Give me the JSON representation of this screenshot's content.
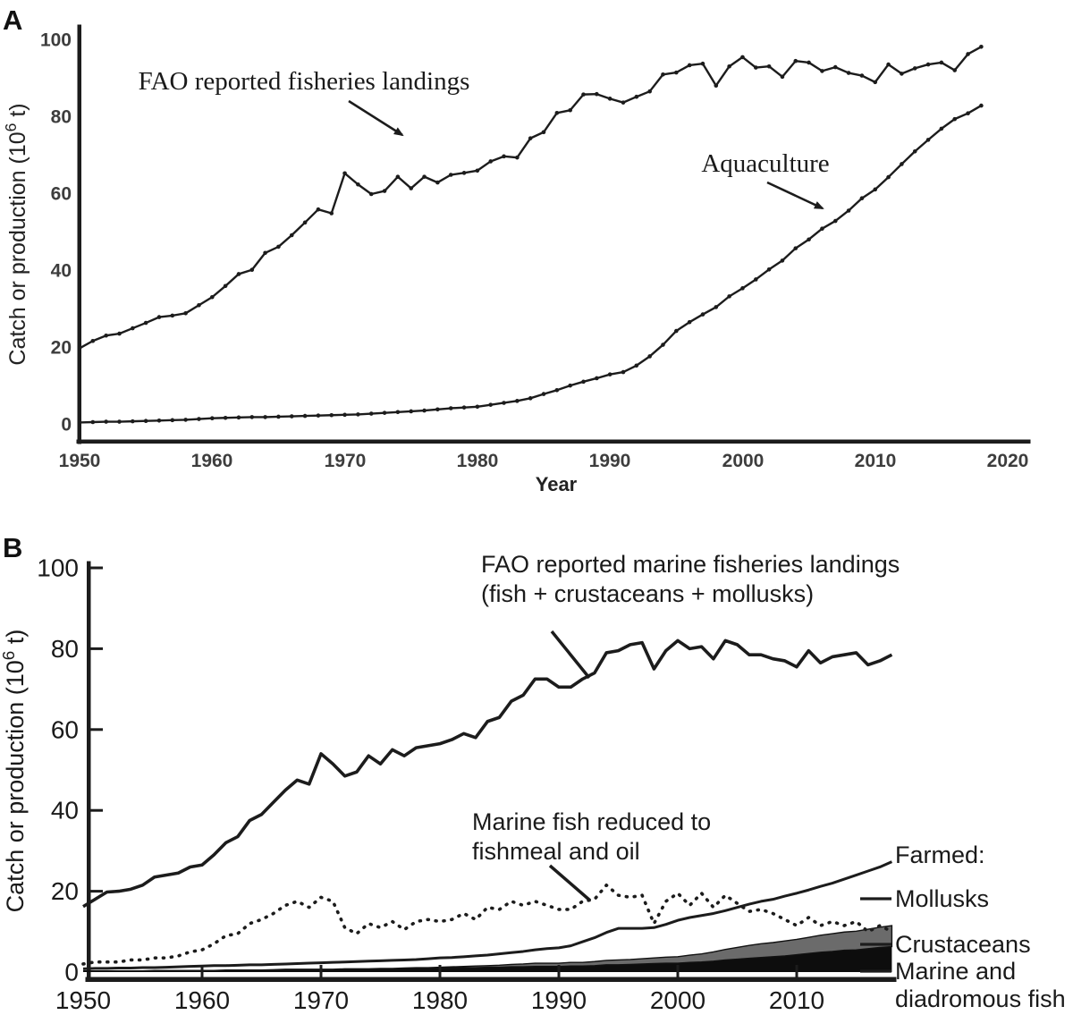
{
  "figure": {
    "panel_a_letter": "A",
    "panel_b_letter": "B",
    "line_color": "#1c1c1c",
    "crustacean_gray": "#6b6b6b",
    "fish_black": "#0d0d0d"
  },
  "panel_a": {
    "ylabel_prefix": "Catch or production (10",
    "ylabel_sup": "6",
    "ylabel_suffix": " t)",
    "xlabel": "Year",
    "annotation_landings": "FAO reported fisheries landings",
    "annotation_aquaculture": "Aquaculture",
    "y_ticks": [
      "0",
      "20",
      "40",
      "60",
      "80",
      "100"
    ],
    "x_ticks": [
      "1950",
      "1960",
      "1970",
      "1980",
      "1990",
      "2000",
      "2010",
      "2020"
    ]
  },
  "panel_b": {
    "ylabel_prefix": "Catch or production (10",
    "ylabel_sup": "6",
    "ylabel_suffix": " t)",
    "annotation_landings_line1": "FAO reported marine fisheries landings",
    "annotation_landings_line2": "(fish + crustaceans + mollusks)",
    "annotation_fishmeal_line1": "Marine fish reduced to",
    "annotation_fishmeal_line2": "fishmeal and oil",
    "legend_header": "Farmed:",
    "legend_mollusks": "Mollusks",
    "legend_crustaceans": "Crustaceans",
    "legend_marine_line1": "Marine and",
    "legend_marine_line2": "diadromous fish",
    "y_ticks": [
      "0",
      "20",
      "40",
      "60",
      "80",
      "100"
    ],
    "x_ticks": [
      "1950",
      "1960",
      "1970",
      "1980",
      "1990",
      "2000",
      "2010"
    ]
  },
  "chart_data": [
    {
      "panel": "A",
      "type": "line",
      "xlabel": "Year",
      "ylabel": "Catch or production (10^6 t)",
      "x_start_year": 1950,
      "xlim": [
        1950,
        2020
      ],
      "ylim": [
        0,
        100
      ],
      "grid": false,
      "series": [
        {
          "name": "FAO reported fisheries landings",
          "style": "solid-with-points",
          "values": [
            19.9,
            21.8,
            23.2,
            23.7,
            25.1,
            26.5,
            28.0,
            28.4,
            29.0,
            31.1,
            33.2,
            36.1,
            39.2,
            40.3,
            44.7,
            46.3,
            49.3,
            52.6,
            56.0,
            55.0,
            65.4,
            62.5,
            60.0,
            60.8,
            64.5,
            61.5,
            64.5,
            63.0,
            65.0,
            65.5,
            66.1,
            68.5,
            69.8,
            69.5,
            74.5,
            76.1,
            81.1,
            81.8,
            85.9,
            86.0,
            84.8,
            83.8,
            85.3,
            86.7,
            91.1,
            91.6,
            93.5,
            93.9,
            88.2,
            93.2,
            95.6,
            92.9,
            93.2,
            90.5,
            94.6,
            94.2,
            92.0,
            93.0,
            91.5,
            90.8,
            89.1,
            93.7,
            91.3,
            92.7,
            93.7,
            94.2,
            92.2,
            96.4,
            98.3
          ]
        },
        {
          "name": "Aquaculture",
          "style": "solid-with-points",
          "values": [
            0.6,
            0.7,
            0.8,
            0.8,
            0.9,
            1.0,
            1.1,
            1.2,
            1.3,
            1.5,
            1.7,
            1.8,
            1.9,
            2.0,
            2.0,
            2.1,
            2.2,
            2.3,
            2.4,
            2.5,
            2.6,
            2.7,
            2.9,
            3.1,
            3.3,
            3.5,
            3.7,
            4.0,
            4.3,
            4.5,
            4.7,
            5.2,
            5.7,
            6.2,
            6.9,
            8.0,
            9.0,
            10.2,
            11.2,
            12.1,
            13.1,
            13.7,
            15.4,
            17.8,
            20.8,
            24.4,
            26.7,
            28.7,
            30.6,
            33.4,
            35.5,
            37.8,
            40.4,
            42.7,
            45.9,
            48.2,
            51.0,
            53.0,
            55.7,
            58.9,
            61.2,
            64.4,
            67.8,
            71.1,
            74.1,
            77.0,
            79.5,
            81.0,
            83.0
          ]
        }
      ]
    },
    {
      "panel": "B",
      "type": "line+stacked-area",
      "xlabel": "",
      "ylabel": "Catch or production (10^6 t)",
      "x_start_year": 1950,
      "xlim": [
        1950,
        2018
      ],
      "ylim": [
        0,
        100
      ],
      "grid": false,
      "series": [
        {
          "name": "FAO reported marine fisheries landings (fish + crustaceans + mollusks)",
          "style": "solid",
          "values": [
            16.2,
            18.0,
            19.8,
            20.0,
            20.5,
            21.5,
            23.5,
            24.0,
            24.5,
            26.0,
            26.5,
            29.0,
            32.0,
            33.5,
            37.5,
            39.0,
            42.0,
            45.0,
            47.5,
            46.5,
            54.0,
            51.5,
            48.5,
            49.5,
            53.5,
            51.5,
            55.0,
            53.5,
            55.5,
            56.0,
            56.5,
            57.5,
            59.0,
            58.0,
            62.0,
            63.0,
            67.0,
            68.5,
            72.5,
            72.5,
            70.5,
            70.5,
            72.5,
            74.0,
            79.0,
            79.5,
            81.0,
            81.5,
            75.0,
            79.5,
            82.0,
            80.0,
            80.5,
            77.5,
            82.0,
            81.0,
            78.5,
            78.5,
            77.5,
            77.0,
            75.5,
            79.5,
            76.5,
            78.0,
            78.5,
            79.0,
            76.0,
            77.0,
            78.5
          ]
        },
        {
          "name": "Marine fish reduced to fishmeal and oil",
          "style": "dotted",
          "values": [
            2.0,
            2.5,
            2.5,
            2.5,
            3.0,
            3.0,
            3.5,
            3.5,
            4.0,
            5.0,
            5.5,
            7.0,
            9.0,
            9.5,
            12.0,
            13.0,
            14.5,
            16.5,
            17.5,
            16.0,
            18.5,
            17.5,
            11.0,
            9.5,
            12.0,
            11.0,
            12.5,
            10.5,
            12.5,
            13.0,
            12.5,
            13.0,
            14.5,
            13.0,
            16.0,
            15.5,
            17.5,
            16.5,
            17.5,
            16.5,
            15.5,
            15.5,
            17.5,
            18.0,
            21.5,
            19.0,
            18.5,
            19.0,
            12.0,
            17.5,
            19.5,
            16.5,
            19.5,
            16.0,
            19.0,
            17.0,
            15.0,
            15.5,
            14.5,
            13.0,
            11.5,
            13.5,
            11.5,
            12.5,
            11.5,
            12.5,
            10.0,
            11.5,
            10.0
          ]
        },
        {
          "name": "Farmed mollusks",
          "style": "solid",
          "values": [
            0.8,
            0.9,
            0.9,
            1.0,
            1.0,
            1.1,
            1.1,
            1.2,
            1.3,
            1.4,
            1.5,
            1.6,
            1.6,
            1.7,
            1.8,
            1.8,
            1.9,
            2.0,
            2.1,
            2.2,
            2.3,
            2.4,
            2.5,
            2.6,
            2.7,
            2.8,
            2.9,
            3.0,
            3.1,
            3.3,
            3.5,
            3.6,
            3.8,
            4.0,
            4.2,
            4.5,
            4.8,
            5.1,
            5.5,
            5.8,
            6.0,
            6.5,
            7.5,
            8.5,
            9.8,
            10.8,
            10.8,
            10.8,
            11.0,
            11.8,
            12.8,
            13.5,
            14.0,
            14.5,
            15.2,
            16.0,
            16.8,
            17.5,
            18.0,
            18.8,
            19.5,
            20.3,
            21.2,
            22.0,
            23.0,
            24.0,
            25.0,
            26.0,
            27.3
          ]
        },
        {
          "name": "Farmed crustaceans",
          "style": "stacked-area-gray",
          "values": [
            0.0,
            0.0,
            0.0,
            0.0,
            0.0,
            0.0,
            0.0,
            0.0,
            0.0,
            0.0,
            0.0,
            0.0,
            0.0,
            0.0,
            0.0,
            0.0,
            0.1,
            0.1,
            0.1,
            0.1,
            0.1,
            0.1,
            0.1,
            0.1,
            0.1,
            0.1,
            0.1,
            0.2,
            0.2,
            0.2,
            0.2,
            0.3,
            0.3,
            0.4,
            0.4,
            0.5,
            0.6,
            0.7,
            0.8,
            0.8,
            0.8,
            0.9,
            0.9,
            1.0,
            1.1,
            1.2,
            1.2,
            1.3,
            1.4,
            1.5,
            1.6,
            1.8,
            2.0,
            2.3,
            2.6,
            2.9,
            3.2,
            3.4,
            3.5,
            3.7,
            3.8,
            4.0,
            4.2,
            4.4,
            4.5,
            4.6,
            4.8,
            5.0,
            5.2
          ]
        },
        {
          "name": "Farmed marine and diadromous fish",
          "style": "stacked-area-black",
          "values": [
            0.3,
            0.3,
            0.3,
            0.3,
            0.3,
            0.3,
            0.4,
            0.4,
            0.4,
            0.4,
            0.4,
            0.4,
            0.5,
            0.5,
            0.5,
            0.5,
            0.5,
            0.6,
            0.6,
            0.6,
            0.6,
            0.6,
            0.7,
            0.7,
            0.7,
            0.8,
            0.8,
            0.8,
            0.9,
            0.9,
            1.0,
            1.0,
            1.1,
            1.1,
            1.2,
            1.2,
            1.3,
            1.3,
            1.4,
            1.4,
            1.4,
            1.5,
            1.5,
            1.6,
            1.8,
            1.8,
            1.9,
            2.0,
            2.1,
            2.2,
            2.2,
            2.4,
            2.5,
            2.7,
            3.0,
            3.2,
            3.4,
            3.6,
            3.8,
            4.0,
            4.3,
            4.6,
            4.9,
            5.1,
            5.4,
            5.5,
            5.8,
            6.1,
            6.3
          ]
        }
      ]
    }
  ]
}
